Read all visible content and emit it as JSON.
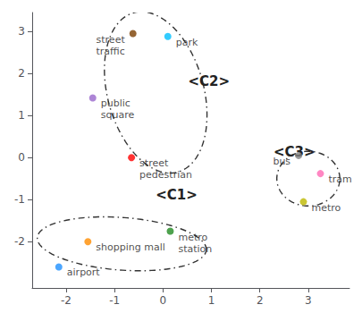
{
  "chart_data": {
    "type": "scatter",
    "points": [
      {
        "label": "street\ntraffic",
        "x": -0.62,
        "y": 2.95,
        "color": "#7B3F00"
      },
      {
        "label": "park",
        "x": 0.1,
        "y": 2.88,
        "color": "#00BFFF"
      },
      {
        "label": "public\nsquare",
        "x": -1.45,
        "y": 1.42,
        "color": "#9966CC"
      },
      {
        "label": "street\npedestrian",
        "x": -0.65,
        "y": 0.0,
        "color": "#FF0000"
      },
      {
        "label": "shopping mall",
        "x": -1.55,
        "y": -2.0,
        "color": "#FF8C00"
      },
      {
        "label": "airport",
        "x": -2.15,
        "y": -2.6,
        "color": "#1E90FF"
      },
      {
        "label": "metro\nstation",
        "x": 0.15,
        "y": -1.75,
        "color": "#228B22"
      },
      {
        "label": "bus",
        "x": 2.8,
        "y": 0.05,
        "color": "#808080"
      },
      {
        "label": "tram",
        "x": 3.25,
        "y": -0.38,
        "color": "#FF69B4"
      },
      {
        "label": "metro",
        "x": 2.9,
        "y": -1.05,
        "color": "#BDB800"
      }
    ],
    "clusters": [
      {
        "name": "<C2>",
        "cx": -0.15,
        "cy": 1.55,
        "width": 2.0,
        "height": 3.9,
        "angle": 12,
        "label_x": 0.52,
        "label_y": 1.65
      },
      {
        "name": "<C1>",
        "cx": -0.85,
        "cy": -2.05,
        "width": 3.5,
        "height": 1.25,
        "angle": -5,
        "label_x": -0.15,
        "label_y": -1.05
      },
      {
        "name": "<C3>",
        "cx": 3.0,
        "cy": -0.5,
        "width": 1.3,
        "height": 1.3,
        "angle": 0,
        "label_x": 2.28,
        "label_y": -0.02
      }
    ],
    "xlim": [
      -2.7,
      3.85
    ],
    "ylim": [
      -3.1,
      3.45
    ],
    "xticks": [
      -2,
      -1,
      0,
      1,
      2,
      3
    ],
    "yticks": [
      -2,
      -1,
      0,
      1,
      2,
      3
    ],
    "grid": false
  }
}
